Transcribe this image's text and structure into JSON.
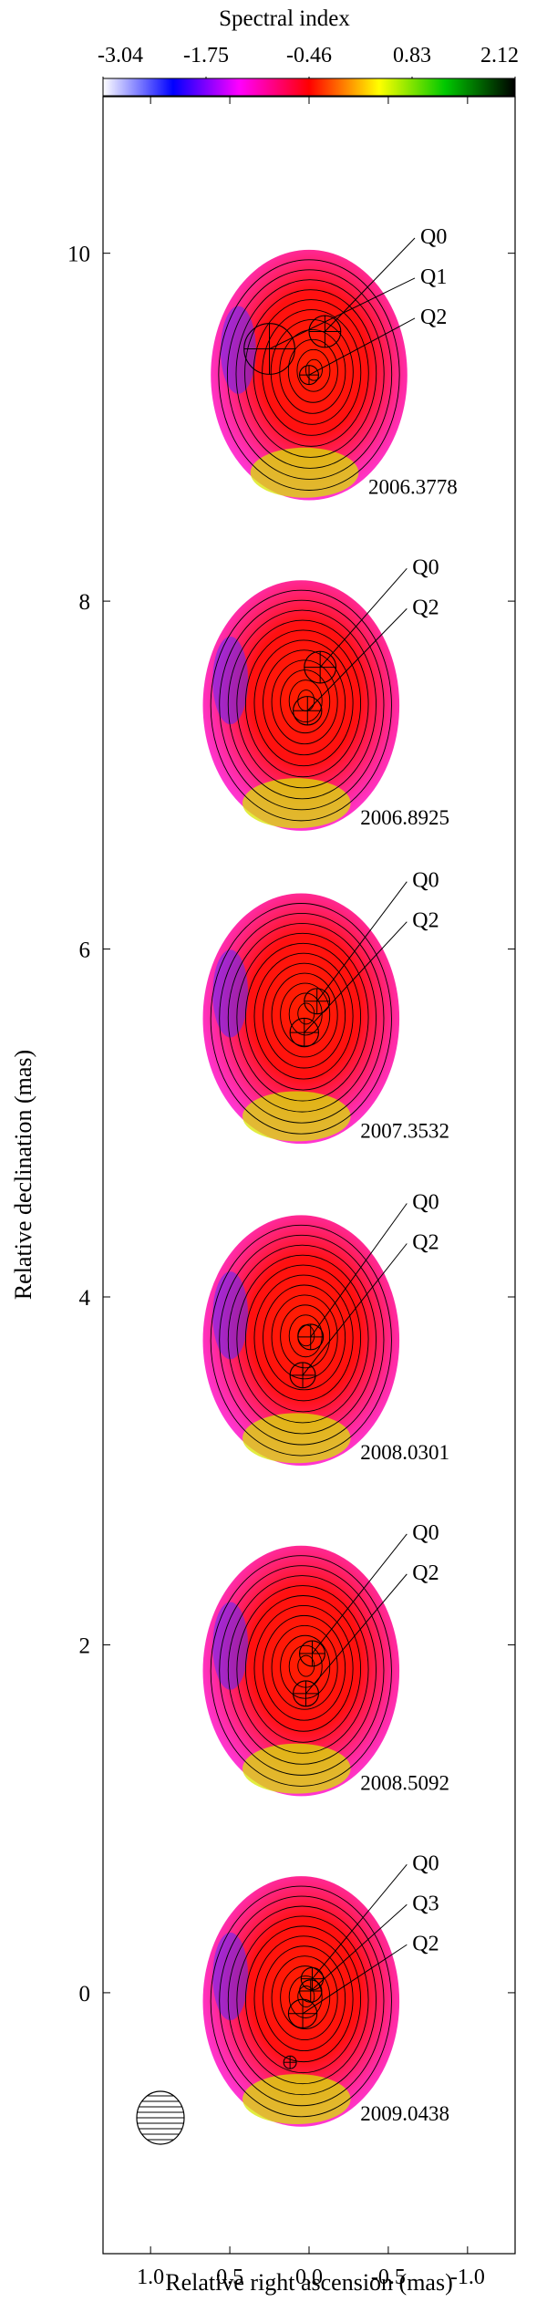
{
  "chart_data": {
    "type": "heatmap",
    "title": "",
    "colorbar": {
      "label": "Spectral index",
      "ticks": [
        "-3.04",
        "-1.75",
        "-0.46",
        "0.83",
        "2.12"
      ],
      "range": [
        -3.04,
        2.12
      ],
      "colors": [
        "#ffffff",
        "#0000ff",
        "#ff00ff",
        "#ff0000",
        "#ffff00",
        "#00c800",
        "#000000"
      ]
    },
    "xlabel": "Relative  right  ascension (mas)",
    "ylabel": "Relative declination (mas)",
    "xlim": [
      1.3,
      -1.3
    ],
    "ylim": [
      -1.5,
      10.9
    ],
    "xticks": [
      {
        "value": 1.0,
        "label": "1.0"
      },
      {
        "value": 0.5,
        "label": "0.5"
      },
      {
        "value": 0.0,
        "label": "0.0"
      },
      {
        "value": -0.5,
        "label": "-0.5"
      },
      {
        "value": -1.0,
        "label": "-1.0"
      }
    ],
    "yticks": [
      {
        "value": 0,
        "label": "0"
      },
      {
        "value": 2,
        "label": "2"
      },
      {
        "value": 4,
        "label": "4"
      },
      {
        "value": 6,
        "label": "6"
      },
      {
        "value": 8,
        "label": "8"
      },
      {
        "value": 10,
        "label": "10"
      }
    ],
    "epochs": [
      {
        "label": "2006.3778",
        "center": [
          0.0,
          9.3
        ],
        "components": [
          {
            "name": "Q0",
            "x": -0.1,
            "y": 9.55,
            "r": 0.1
          },
          {
            "name": "Q1",
            "x": 0.25,
            "y": 9.45,
            "r": 0.16
          },
          {
            "name": "Q2",
            "x": 0.0,
            "y": 9.3,
            "r": 0.06
          }
        ]
      },
      {
        "label": "2006.8925",
        "center": [
          0.05,
          7.4
        ],
        "components": [
          {
            "name": "Q0",
            "x": -0.07,
            "y": 7.62,
            "r": 0.1
          },
          {
            "name": "Q2",
            "x": 0.01,
            "y": 7.37,
            "r": 0.09
          }
        ]
      },
      {
        "label": "2007.3532",
        "center": [
          0.05,
          5.6
        ],
        "components": [
          {
            "name": "Q0",
            "x": -0.05,
            "y": 5.7,
            "r": 0.08
          },
          {
            "name": "Q2",
            "x": 0.03,
            "y": 5.52,
            "r": 0.09
          }
        ]
      },
      {
        "label": "2008.0301",
        "center": [
          0.05,
          3.75
        ],
        "components": [
          {
            "name": "Q0",
            "x": -0.01,
            "y": 3.77,
            "r": 0.08
          },
          {
            "name": "Q2",
            "x": 0.04,
            "y": 3.55,
            "r": 0.08
          }
        ]
      },
      {
        "label": "2008.5092",
        "center": [
          0.05,
          1.85
        ],
        "components": [
          {
            "name": "Q0",
            "x": -0.02,
            "y": 1.95,
            "r": 0.08
          },
          {
            "name": "Q2",
            "x": 0.02,
            "y": 1.72,
            "r": 0.08
          }
        ]
      },
      {
        "label": "2009.0438",
        "center": [
          0.05,
          -0.05
        ],
        "components": [
          {
            "name": "Q0",
            "x": -0.02,
            "y": 0.08,
            "r": 0.07
          },
          {
            "name": "Q3",
            "x": -0.01,
            "y": 0.01,
            "r": 0.07
          },
          {
            "name": "Q2",
            "x": 0.04,
            "y": -0.12,
            "r": 0.09
          },
          {
            "name": "",
            "x": 0.12,
            "y": -0.4,
            "r": 0.04
          }
        ]
      }
    ]
  }
}
